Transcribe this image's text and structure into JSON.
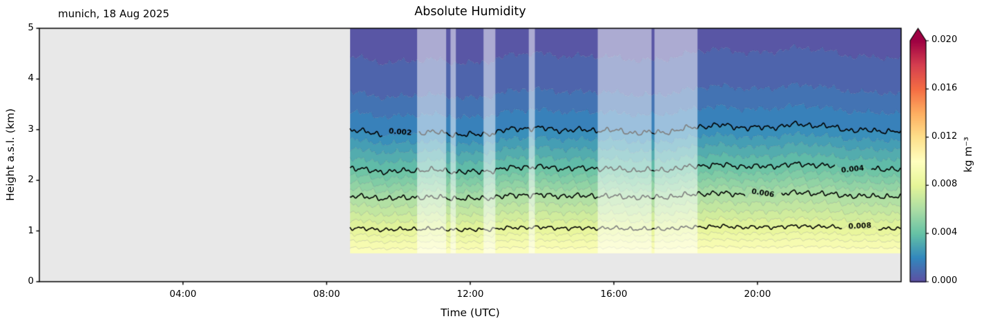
{
  "chart_data": {
    "type": "heatmap",
    "title": "Absolute Humidity",
    "annotation_top_left": "munich, 18 Aug 2025",
    "xlabel": "Time (UTC)",
    "ylabel": "Height a.s.l. (km)",
    "x_axis": {
      "unit": "hours UTC",
      "min": 0,
      "max": 24,
      "ticks": [
        {
          "hour": 4,
          "label": "04:00"
        },
        {
          "hour": 8,
          "label": "08:00"
        },
        {
          "hour": 12,
          "label": "12:00"
        },
        {
          "hour": 16,
          "label": "16:00"
        },
        {
          "hour": 20,
          "label": "20:00"
        }
      ]
    },
    "y_axis": {
      "unit": "km",
      "min": 0,
      "max": 5,
      "ticks": [
        {
          "km": 0,
          "label": "0"
        },
        {
          "km": 1,
          "label": "1"
        },
        {
          "km": 2,
          "label": "2"
        },
        {
          "km": 3,
          "label": "3"
        },
        {
          "km": 4,
          "label": "4"
        },
        {
          "km": 5,
          "label": "5"
        }
      ]
    },
    "colorbar": {
      "label": "kg m⁻³",
      "vmin": 0.0,
      "vmax": 0.02,
      "extend_max": true,
      "level_step": 0.0005,
      "colormap_name": "Spectral_r",
      "stops": [
        "#5e4fa2",
        "#3288bd",
        "#66c2a5",
        "#abdda4",
        "#e6f598",
        "#ffffbf",
        "#fee08b",
        "#fdae61",
        "#f46d43",
        "#d53e4f",
        "#9e0142"
      ],
      "ticks": [
        {
          "v": 0.0,
          "label": "0.000"
        },
        {
          "v": 0.004,
          "label": "0.004"
        },
        {
          "v": 0.008,
          "label": "0.008"
        },
        {
          "v": 0.012,
          "label": "0.012"
        },
        {
          "v": 0.016,
          "label": "0.016"
        },
        {
          "v": 0.02,
          "label": "0.020"
        }
      ]
    },
    "no_data_color": "#e8e8e8",
    "field": {
      "data_start_hour": 8.65,
      "data_end_hour": 24.0,
      "data_base_km": 0.56,
      "data_top_km": 5.0,
      "profile_points": [
        {
          "z_km": 0.56,
          "q_kg_m3": 0.0099
        },
        {
          "z_km": 0.8,
          "q_kg_m3": 0.009
        },
        {
          "z_km": 1.05,
          "q_kg_m3": 0.008
        },
        {
          "z_km": 1.35,
          "q_kg_m3": 0.007
        },
        {
          "z_km": 1.68,
          "q_kg_m3": 0.006
        },
        {
          "z_km": 1.95,
          "q_kg_m3": 0.005
        },
        {
          "z_km": 2.22,
          "q_kg_m3": 0.004
        },
        {
          "z_km": 2.6,
          "q_kg_m3": 0.003
        },
        {
          "z_km": 2.97,
          "q_kg_m3": 0.002
        },
        {
          "z_km": 3.4,
          "q_kg_m3": 0.0014
        },
        {
          "z_km": 3.8,
          "q_kg_m3": 0.0009
        },
        {
          "z_km": 4.3,
          "q_kg_m3": 0.00055
        },
        {
          "z_km": 4.65,
          "q_kg_m3": 0.0004
        },
        {
          "z_km": 5.0,
          "q_kg_m3": 0.00028
        }
      ],
      "time_modulation": {
        "sin_terms": [
          {
            "amp": 0.02,
            "freq": 0.8,
            "phase": 2.2
          },
          {
            "amp": 0.012,
            "freq": 2.4,
            "phase": 0.7
          },
          {
            "amp": 0.007,
            "freq": 6.3,
            "phase": 1.1
          }
        ],
        "bump": {
          "amp": 0.05,
          "center": 19.4,
          "width": 5.0
        },
        "dip": {
          "amp": 0.03,
          "center": 16.3,
          "width": 0.9
        },
        "late_droop": {
          "start": 22.3,
          "rate": 0.018
        }
      },
      "edge_jitter": {
        "zcap": 1.4,
        "terms": [
          {
            "amp": 0.022,
            "freq": 16.7,
            "zphase": 9.1
          },
          {
            "amp": 0.013,
            "freq": 31.3,
            "zphase": 13.7
          },
          {
            "amp": 0.009,
            "freq": 49.0,
            "zphase": 23.0
          }
        ]
      },
      "flagged_bands_hours": [
        [
          10.52,
          11.33
        ],
        [
          11.45,
          11.6
        ],
        [
          12.37,
          12.7
        ],
        [
          13.63,
          13.8
        ],
        [
          15.55,
          17.05
        ],
        [
          17.13,
          18.33
        ]
      ],
      "flag_overlay_color": "#ffffff",
      "flag_overlay_alpha": 0.5
    },
    "contour_lines": {
      "color": "#000000",
      "levels": [
        0.002,
        0.004,
        0.006,
        0.008
      ],
      "labels": [
        {
          "value": 0.002,
          "text": "0.002",
          "hour": 10.05
        },
        {
          "value": 0.004,
          "text": "0.004",
          "hour": 22.65
        },
        {
          "value": 0.006,
          "text": "0.006",
          "hour": 20.15
        },
        {
          "value": 0.008,
          "text": "0.008",
          "hour": 22.85
        }
      ]
    }
  }
}
